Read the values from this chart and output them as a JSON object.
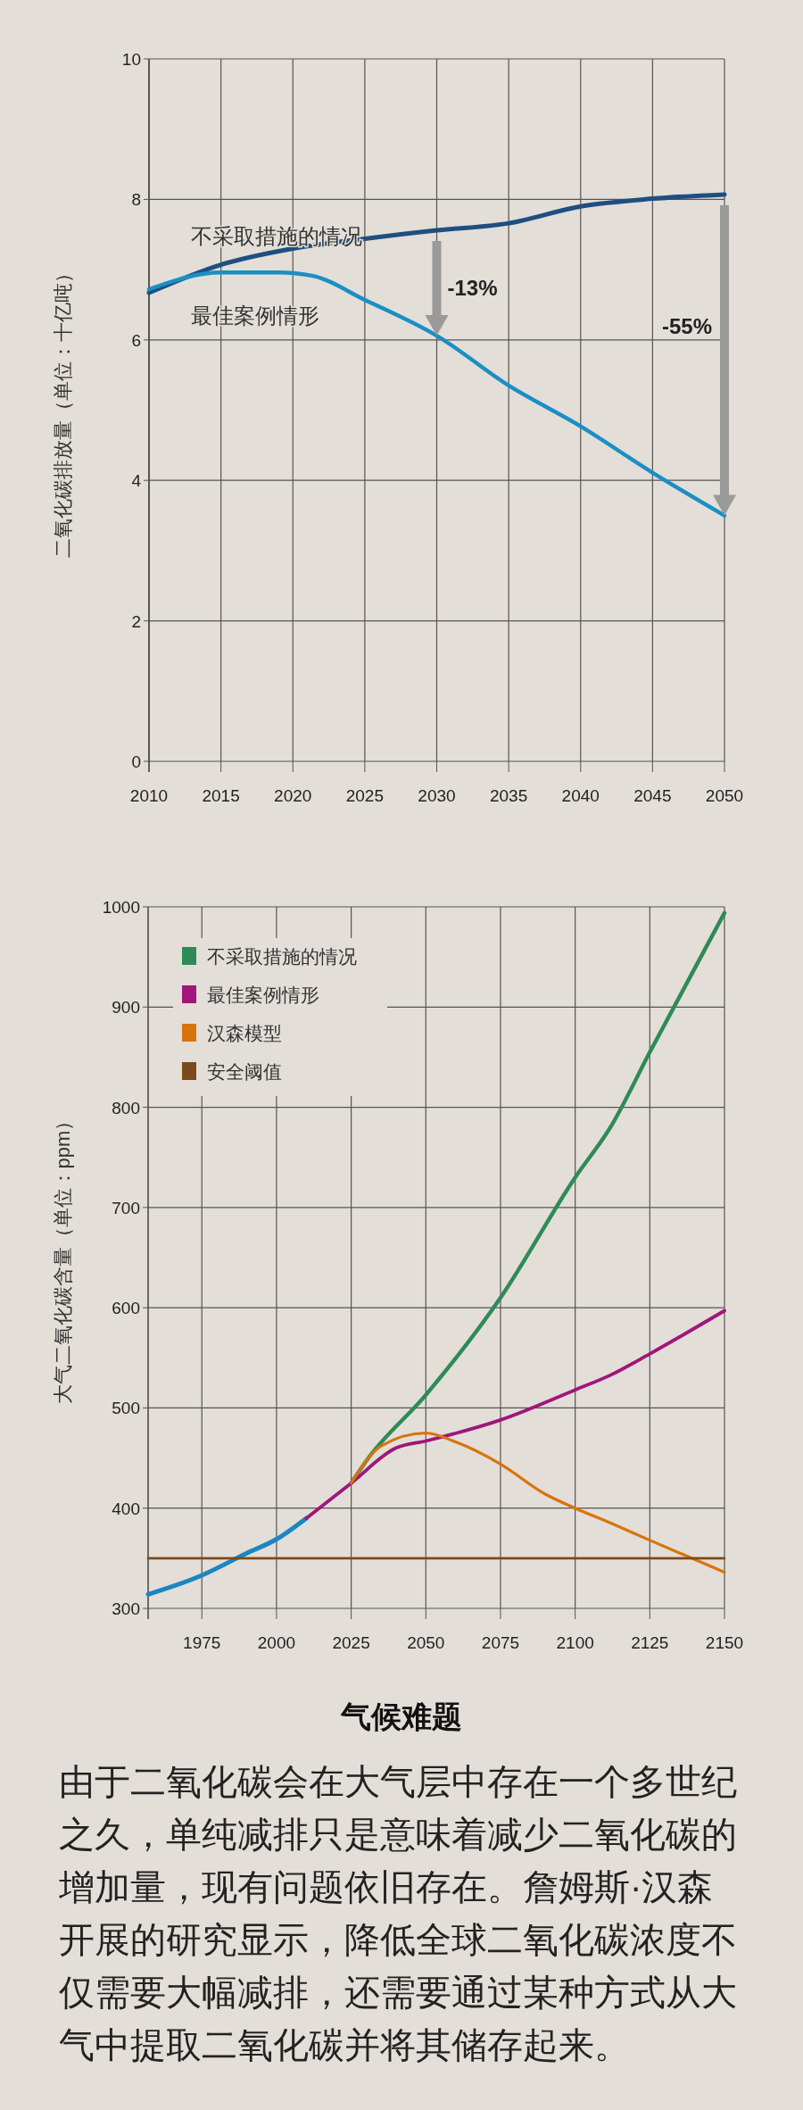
{
  "chart_data": [
    {
      "type": "line",
      "ylabel": "二氧化碳排放量（单位：十亿吨）",
      "xlim": [
        2010,
        2050
      ],
      "xticks": [
        2010,
        2015,
        2020,
        2025,
        2030,
        2035,
        2040,
        2045,
        2050
      ],
      "ylim": [
        0,
        10
      ],
      "yticks": [
        0,
        2,
        4,
        6,
        8,
        10
      ],
      "grid": true,
      "legend": false,
      "marker": "none",
      "line_style": "solid",
      "series": [
        {
          "name": "不采取措施的情况",
          "color": "#1d4f80",
          "x": [
            2010,
            2015,
            2020,
            2025,
            2030,
            2035,
            2040,
            2045,
            2050
          ],
          "values": [
            6.67,
            7.07,
            7.3,
            7.44,
            7.56,
            7.66,
            7.9,
            8.01,
            8.07
          ]
        },
        {
          "name": "最佳案例情形",
          "color": "#1a8fc4",
          "x": [
            2010,
            2015,
            2019,
            2021.4,
            2025,
            2030,
            2035,
            2040,
            2045,
            2050
          ],
          "values": [
            6.72,
            6.96,
            6.96,
            6.91,
            6.57,
            6.06,
            5.35,
            4.77,
            4.11,
            3.5
          ]
        }
      ],
      "annotations": [
        "-13%",
        "-55%"
      ]
    },
    {
      "type": "line",
      "ylabel": "大气二氧化碳含量（单位：ppm）",
      "xlim": [
        1957,
        2150
      ],
      "xticks": [
        1975,
        2000,
        2025,
        2050,
        2075,
        2100,
        2125,
        2150
      ],
      "ylim": [
        300,
        1000
      ],
      "yticks": [
        300,
        400,
        500,
        600,
        700,
        800,
        900,
        1000
      ],
      "grid": true,
      "legend": "top left",
      "marker": "none",
      "line_style": "solid",
      "series": [
        {
          "color": "#1a86c2",
          "x": [
            1957,
            1975,
            1990,
            2000,
            2010
          ],
          "values": [
            314,
            333,
            355,
            369,
            390
          ]
        },
        {
          "name": "不采取措施的情况",
          "color": "#2e8b57",
          "x": [
            2025,
            2030,
            2050,
            2075,
            2100,
            2112,
            2125,
            2150
          ],
          "values": [
            425,
            447,
            513,
            610,
            730,
            781,
            855,
            994
          ]
        },
        {
          "name": "最佳案例情形",
          "color": "#a0167a",
          "x": [
            2010,
            2025,
            2040,
            2050,
            2075,
            2100,
            2112,
            2125,
            2150
          ],
          "values": [
            390,
            425,
            460,
            467,
            488,
            518,
            533,
            554,
            597
          ]
        },
        {
          "name": "汉森模型",
          "color": "#d9730f",
          "x": [
            2025,
            2035,
            2050,
            2060,
            2075,
            2090,
            2100,
            2112,
            2125,
            2150
          ],
          "values": [
            425,
            462,
            475,
            466,
            444,
            414,
            400,
            385,
            368,
            336
          ]
        },
        {
          "name": "安全阈值",
          "color": "#7b4a1a",
          "x": [
            1957,
            2150
          ],
          "values": [
            350,
            350
          ]
        }
      ],
      "annotations": [
        "气候难题",
        "由于二氧化碳会在大气层中存在一个多世纪之久，单纯减排只是意味着减少二氧化碳的增加量，现有问题依旧存在。詹姆斯·汉森开展的研究显示，降低全球二氧化碳浓度不仅需要大幅减排，还需要通过某种方式从大气中提取二氧化碳并将其储存起来。"
      ]
    }
  ]
}
